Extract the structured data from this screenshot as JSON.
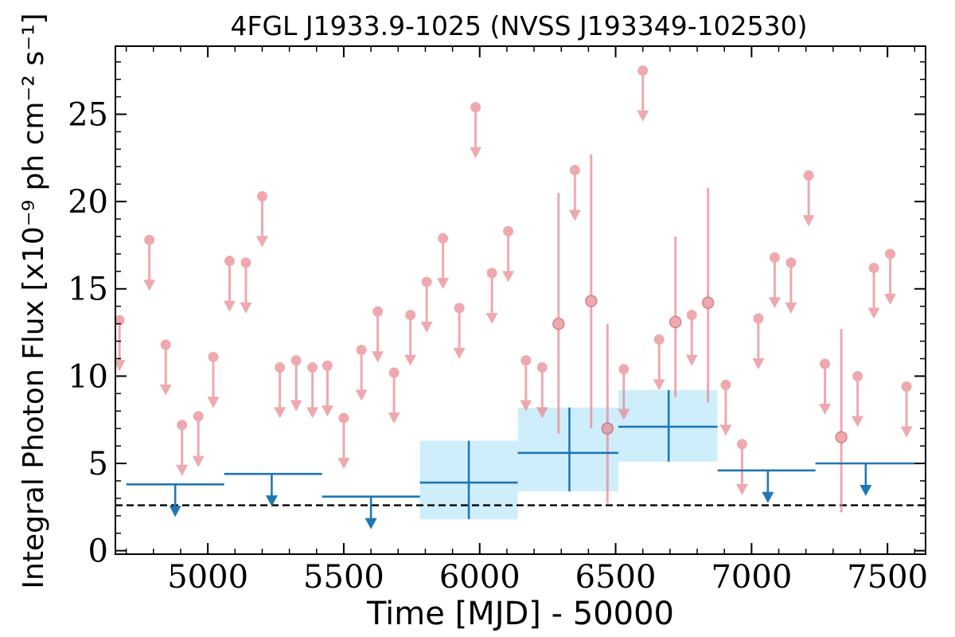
{
  "chart_data": {
    "type": "scatter",
    "title": "4FGL J1933.9-1025 (NVSS J193349-102530)",
    "xlabel": "Time [MJD] - 50000",
    "ylabel": "Integral Photon Flux [x10⁻⁹ ph cm⁻² s⁻¹]",
    "xlim": [
      4660,
      7640
    ],
    "ylim": [
      -0.2,
      28.9
    ],
    "xticks": [
      "5000",
      "5500",
      "6000",
      "6500",
      "7000",
      "7500"
    ],
    "yticks": [
      "0",
      "5",
      "10",
      "15",
      "20",
      "25"
    ],
    "grid": false,
    "reference_line": {
      "y": 2.6,
      "style": "dashed",
      "color": "#000000"
    },
    "colors": {
      "short_bins": "#e8868c",
      "long_bins": "#1f77b4",
      "error_band": "#cfeefc"
    },
    "short_bins_upper_limits": {
      "x": [
        4675,
        4785,
        4845,
        4905,
        4965,
        5020,
        5080,
        5140,
        5200,
        5265,
        5325,
        5385,
        5440,
        5500,
        5565,
        5625,
        5685,
        5745,
        5805,
        5865,
        5925,
        5985,
        6045,
        6105,
        6170,
        6230,
        6350,
        6530,
        6660,
        6780,
        6905,
        6965,
        7025,
        7085,
        7145,
        7210,
        7270,
        7390,
        7450,
        7510,
        7570
      ],
      "y": [
        13.2,
        17.8,
        11.8,
        7.2,
        7.7,
        11.1,
        16.6,
        16.5,
        20.3,
        10.5,
        10.9,
        10.5,
        10.6,
        7.6,
        11.5,
        13.7,
        10.2,
        13.5,
        15.4,
        17.9,
        13.9,
        25.4,
        15.9,
        18.3,
        10.9,
        10.5,
        21.8,
        10.4,
        12.1,
        13.5,
        9.5,
        6.1,
        13.3,
        16.8,
        16.5,
        21.5,
        10.7,
        10.0,
        16.2,
        17.0,
        9.4
      ]
    },
    "short_bins_detections": {
      "x": [
        6290,
        6410,
        6470,
        6600,
        6720,
        6840,
        7330
      ],
      "y": [
        13.0,
        14.3,
        7.0,
        27.5,
        13.1,
        14.2,
        6.5
      ],
      "y_low": [
        6.7,
        7.0,
        2.7,
        24.5,
        8.8,
        8.5,
        2.2
      ],
      "y_high": [
        20.5,
        22.7,
        13.0,
        27.5,
        18.0,
        20.8,
        12.7
      ],
      "upper_limit": [
        false,
        false,
        false,
        true,
        false,
        false,
        false
      ]
    },
    "long_bins": [
      {
        "x_start": 4700,
        "x_end": 5060,
        "x": 4880,
        "y": 3.8,
        "upper_limit": true
      },
      {
        "x_start": 5060,
        "x_end": 5420,
        "x": 5235,
        "y": 4.4,
        "upper_limit": true
      },
      {
        "x_start": 5420,
        "x_end": 5780,
        "x": 5600,
        "y": 3.1,
        "upper_limit": true
      },
      {
        "x_start": 5780,
        "x_end": 6140,
        "x": 5960,
        "y": 3.9,
        "y_low": 1.8,
        "y_high": 6.3,
        "upper_limit": false
      },
      {
        "x_start": 6140,
        "x_end": 6510,
        "x": 6330,
        "y": 5.6,
        "y_low": 3.4,
        "y_high": 8.2,
        "upper_limit": false
      },
      {
        "x_start": 6510,
        "x_end": 6875,
        "x": 6695,
        "y": 7.1,
        "y_low": 5.1,
        "y_high": 9.2,
        "upper_limit": false
      },
      {
        "x_start": 6875,
        "x_end": 7235,
        "x": 7060,
        "y": 4.6,
        "upper_limit": true
      },
      {
        "x_start": 7235,
        "x_end": 7600,
        "x": 7420,
        "y": 5.0,
        "upper_limit": true
      }
    ]
  }
}
